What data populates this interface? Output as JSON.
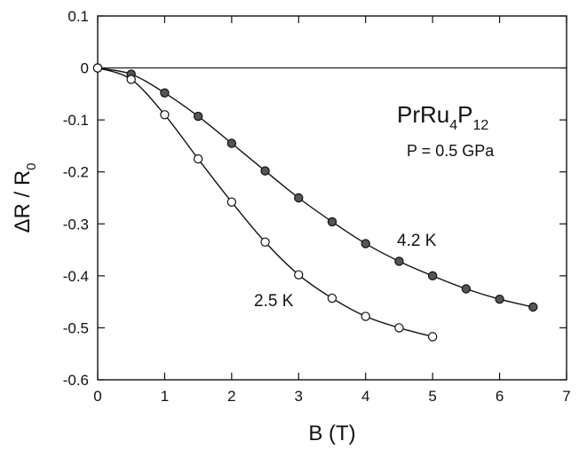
{
  "chart_data": {
    "type": "line",
    "title": "",
    "xlabel": {
      "base": "B (T)"
    },
    "ylabel": {
      "prefix": "ΔR / R",
      "sub": "0"
    },
    "xlim": [
      0,
      7
    ],
    "ylim": [
      -0.6,
      0.1
    ],
    "xticks": [
      0,
      1,
      2,
      3,
      4,
      5,
      6,
      7
    ],
    "xtick_labels": [
      "0",
      "1",
      "2",
      "3",
      "4",
      "5",
      "6",
      "7"
    ],
    "yticks": [
      0.1,
      0,
      -0.1,
      -0.2,
      -0.3,
      -0.4,
      -0.5,
      -0.6
    ],
    "ytick_labels": [
      "0.1",
      "0",
      "-0.1",
      "-0.2",
      "-0.3",
      "-0.4",
      "-0.5",
      "-0.6"
    ],
    "grid": false,
    "legend": "none",
    "zero_line": true,
    "series": [
      {
        "label": "4.2 K",
        "marker": "filled-circle",
        "marker_color": "#555555",
        "x": [
          0,
          0.5,
          1.0,
          1.5,
          2.0,
          2.5,
          3.0,
          3.5,
          4.0,
          4.5,
          5.0,
          5.5,
          6.0,
          6.5
        ],
        "y": [
          0.0,
          -0.012,
          -0.048,
          -0.093,
          -0.145,
          -0.198,
          -0.25,
          -0.296,
          -0.338,
          -0.372,
          -0.4,
          -0.425,
          -0.445,
          -0.46
        ]
      },
      {
        "label": "2.5 K",
        "marker": "open-circle",
        "marker_color": "#ffffff",
        "x": [
          0,
          0.5,
          1.0,
          1.5,
          2.0,
          2.5,
          3.0,
          3.5,
          4.0,
          4.5,
          5.0
        ],
        "y": [
          0.0,
          -0.022,
          -0.09,
          -0.175,
          -0.258,
          -0.335,
          -0.398,
          -0.443,
          -0.478,
          -0.5,
          -0.517
        ]
      }
    ],
    "annotations": {
      "compound": {
        "a": "PrRu",
        "b": "4",
        "c": "P",
        "d": "12"
      },
      "pressure": "P = 0.5 GPa",
      "label_42": "4.2 K",
      "label_25": "2.5 K"
    }
  }
}
